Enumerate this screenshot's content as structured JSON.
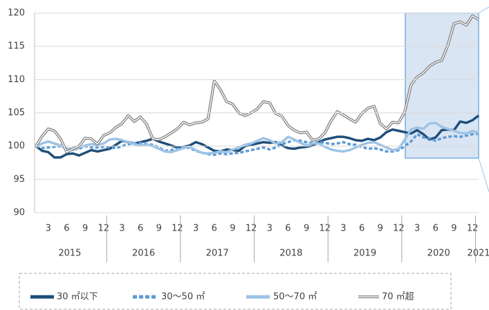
{
  "chart_data": {
    "type": "line",
    "categories": [
      null,
      null,
      "3",
      null,
      null,
      "6",
      null,
      null,
      "9",
      null,
      null,
      "12",
      null,
      null,
      "3",
      null,
      null,
      "6",
      null,
      null,
      "9",
      null,
      null,
      "12",
      null,
      null,
      "3",
      null,
      null,
      "6",
      null,
      null,
      "9",
      null,
      null,
      "12",
      null,
      null,
      "3",
      null,
      null,
      "6",
      null,
      null,
      "9",
      null,
      null,
      "12",
      null,
      null,
      "3",
      null,
      null,
      "6",
      null,
      null,
      "9",
      null,
      null,
      "12",
      null,
      null,
      "3",
      null,
      null,
      "6",
      null,
      null,
      "9",
      null,
      null,
      "12",
      null
    ],
    "years": [
      "2015",
      "2016",
      "2017",
      "2018",
      "2019",
      "2020",
      "2021"
    ],
    "ylim": [
      90,
      120
    ],
    "yticks": [
      90,
      95,
      100,
      105,
      110,
      115,
      120
    ],
    "grid": true,
    "series": [
      {
        "name": "30 ㎡以下",
        "color": "#1f4e79",
        "style": "solid",
        "values": [
          100,
          99.3,
          99.1,
          98.3,
          98.3,
          98.8,
          98.9,
          98.6,
          99.0,
          99.4,
          99.2,
          99.4,
          99.6,
          100.2,
          100.8,
          100.6,
          100.4,
          100.6,
          100.8,
          101.1,
          100.7,
          100.4,
          100.1,
          99.8,
          99.9,
          100.1,
          100.6,
          100.3,
          99.8,
          99.3,
          99.2,
          99.5,
          99.4,
          99.3,
          100.0,
          100.2,
          100.4,
          100.6,
          100.5,
          100.6,
          100.1,
          99.7,
          99.6,
          99.8,
          99.9,
          100.1,
          100.6,
          101.0,
          101.2,
          101.4,
          101.4,
          101.2,
          100.9,
          100.8,
          101.1,
          100.9,
          101.3,
          102.1,
          102.5,
          102.3,
          102.1,
          101.9,
          102.4,
          101.8,
          101.0,
          101.3,
          102.4,
          102.5,
          102.4,
          103.7,
          103.5,
          103.9,
          104.6
        ]
      },
      {
        "name": "30〜50 ㎡",
        "color": "#5b9bd5",
        "style": "dashed",
        "values": [
          100,
          99.7,
          99.8,
          99.9,
          100,
          99.7,
          99.5,
          99.6,
          100,
          99.8,
          99.8,
          99.9,
          99.8,
          99.7,
          100,
          100.3,
          100.4,
          100.5,
          100.3,
          100.2,
          99.8,
          99.3,
          99.4,
          99.6,
          99.9,
          99.7,
          99.3,
          99.0,
          98.8,
          98.7,
          98.9,
          98.8,
          98.9,
          99.0,
          99.2,
          99.4,
          99.6,
          99.8,
          99.5,
          99.8,
          100.3,
          100.6,
          100.9,
          100.8,
          100.6,
          100.5,
          100.6,
          100.5,
          100.3,
          100.4,
          100.6,
          100.3,
          100.2,
          99.9,
          99.6,
          99.7,
          99.5,
          99.2,
          99.2,
          99.4,
          100.0,
          100.7,
          101.8,
          101.3,
          101.2,
          100.8,
          101.2,
          101.4,
          101.5,
          101.4,
          101.6,
          101.8,
          101.9
        ]
      },
      {
        "name": "50〜70 ㎡",
        "color": "#9dc3e6",
        "style": "solid",
        "values": [
          100,
          100.4,
          100.7,
          100.4,
          100.1,
          99.6,
          99.4,
          99.8,
          100.1,
          100.3,
          100.2,
          100.4,
          101.0,
          101.1,
          100.9,
          100.6,
          100.3,
          100.1,
          100.2,
          100.0,
          99.6,
          99.2,
          99.1,
          99.4,
          99.7,
          99.9,
          99.4,
          99.0,
          98.9,
          99.0,
          99.2,
          99.1,
          99.5,
          99.8,
          100.2,
          100.4,
          100.8,
          101.2,
          100.9,
          100.4,
          100.6,
          101.4,
          101.0,
          100.5,
          100.1,
          100.4,
          100.4,
          99.9,
          99.5,
          99.3,
          99.2,
          99.4,
          99.8,
          100.2,
          100.5,
          100.6,
          100.2,
          99.8,
          99.4,
          99.6,
          101.0,
          102.5,
          102.8,
          102.6,
          103.4,
          103.5,
          102.9,
          102.6,
          102.3,
          102.0,
          101.9,
          102.3,
          102.0
        ]
      },
      {
        "name": "70 ㎡超",
        "color": "#808080",
        "style": "double",
        "values": [
          100,
          101.5,
          102.6,
          102.3,
          101.1,
          99.1,
          99.6,
          100.0,
          101.2,
          101.1,
          100.3,
          101.6,
          102.0,
          102.8,
          103.4,
          104.6,
          103.7,
          104.4,
          103.3,
          101.1,
          101.0,
          101.4,
          102.0,
          102.6,
          103.6,
          103.2,
          103.5,
          103.6,
          104.1,
          109.8,
          108.5,
          106.7,
          106.3,
          105.0,
          104.6,
          105.0,
          105.6,
          106.7,
          106.5,
          104.9,
          104.5,
          103.1,
          102.4,
          102.0,
          102.1,
          100.9,
          101.1,
          102.0,
          103.8,
          105.2,
          104.7,
          104.1,
          103.6,
          104.9,
          105.7,
          106.0,
          103.4,
          102.6,
          103.6,
          103.5,
          105.2,
          109.2,
          110.4,
          111.0,
          112.0,
          112.6,
          112.9,
          115.2,
          118.4,
          118.7,
          118.2,
          119.6,
          119.0
        ]
      }
    ]
  }
}
